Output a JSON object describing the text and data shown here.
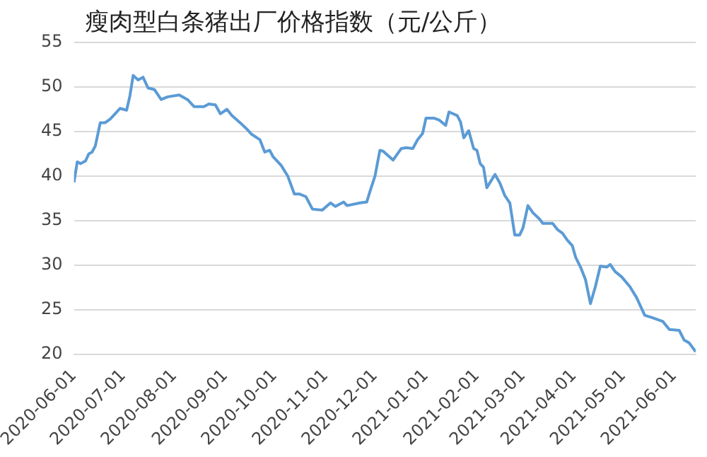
{
  "chart_data": {
    "type": "line",
    "title": "瘦肉型白条猪出厂价格指数（元/公斤）",
    "x": [
      "2020-06-01",
      "2020-06-03",
      "2020-06-05",
      "2020-06-08",
      "2020-06-10",
      "2020-06-12",
      "2020-06-14",
      "2020-06-17",
      "2020-06-20",
      "2020-06-23",
      "2020-06-26",
      "2020-06-29",
      "2020-07-03",
      "2020-07-05",
      "2020-07-07",
      "2020-07-10",
      "2020-07-13",
      "2020-07-16",
      "2020-07-20",
      "2020-07-24",
      "2020-07-28",
      "2020-08-04",
      "2020-08-09",
      "2020-08-13",
      "2020-08-19",
      "2020-08-22",
      "2020-08-26",
      "2020-08-29",
      "2020-09-02",
      "2020-09-05",
      "2020-09-10",
      "2020-09-14",
      "2020-09-17",
      "2020-09-22",
      "2020-09-25",
      "2020-09-28",
      "2020-09-30",
      "2020-10-05",
      "2020-10-09",
      "2020-10-13",
      "2020-10-16",
      "2020-10-20",
      "2020-10-24",
      "2020-10-30",
      "2020-11-04",
      "2020-11-07",
      "2020-11-12",
      "2020-11-14",
      "2020-11-22",
      "2020-11-26",
      "2020-11-28",
      "2020-12-01",
      "2020-12-04",
      "2020-12-06",
      "2020-12-12",
      "2020-12-17",
      "2020-12-20",
      "2020-12-24",
      "2020-12-27",
      "2020-12-30",
      "2021-01-01",
      "2021-01-06",
      "2021-01-09",
      "2021-01-13",
      "2021-01-15",
      "2021-01-20",
      "2021-01-22",
      "2021-01-24",
      "2021-01-27",
      "2021-01-30",
      "2021-02-01",
      "2021-02-03",
      "2021-02-05",
      "2021-02-07",
      "2021-02-12",
      "2021-02-15",
      "2021-02-18",
      "2021-02-21",
      "2021-02-24",
      "2021-02-27",
      "2021-03-01",
      "2021-03-04",
      "2021-03-07",
      "2021-03-11",
      "2021-03-13",
      "2021-03-19",
      "2021-03-22",
      "2021-03-25",
      "2021-03-28",
      "2021-03-31",
      "2021-04-02",
      "2021-04-05",
      "2021-04-08",
      "2021-04-11",
      "2021-04-14",
      "2021-04-17",
      "2021-04-21",
      "2021-04-23",
      "2021-04-26",
      "2021-04-30",
      "2021-05-05",
      "2021-05-09",
      "2021-05-14",
      "2021-05-19",
      "2021-05-25",
      "2021-05-29",
      "2021-06-04",
      "2021-06-07",
      "2021-06-10",
      "2021-06-14"
    ],
    "series": [
      {
        "color": "#5b9bd5",
        "values": [
          39.3,
          41.6,
          41.4,
          41.7,
          42.5,
          42.7,
          43.4,
          46.0,
          46.0,
          46.4,
          47.0,
          47.6,
          47.4,
          49.0,
          51.3,
          50.8,
          51.1,
          49.9,
          49.7,
          48.6,
          48.9,
          49.1,
          48.6,
          47.8,
          47.8,
          48.1,
          48.0,
          47.0,
          47.5,
          46.8,
          46.0,
          45.3,
          44.7,
          44.1,
          42.7,
          42.9,
          42.2,
          41.2,
          40.0,
          38.0,
          38.0,
          37.7,
          36.3,
          36.2,
          37.0,
          36.6,
          37.1,
          36.7,
          37.0,
          37.1,
          38.3,
          40.0,
          42.9,
          42.8,
          41.8,
          43.1,
          43.2,
          43.1,
          44.1,
          44.8,
          46.5,
          46.5,
          46.3,
          45.7,
          47.2,
          46.8,
          46.1,
          44.3,
          45.1,
          43.1,
          42.9,
          41.4,
          41.0,
          38.7,
          40.2,
          39.2,
          37.8,
          37.0,
          33.4,
          33.4,
          34.2,
          36.7,
          35.9,
          35.2,
          34.7,
          34.7,
          34.0,
          33.6,
          32.8,
          32.2,
          30.9,
          29.8,
          28.4,
          25.7,
          27.6,
          29.9,
          29.8,
          30.1,
          29.3,
          28.7,
          27.6,
          26.4,
          24.4,
          24.1,
          23.7,
          22.8,
          22.7,
          21.6,
          21.3,
          20.3
        ]
      }
    ],
    "xlim": [
      "2020-06-01",
      "2021-06-14"
    ],
    "xticks": [
      "2020-06-01",
      "2020-07-01",
      "2020-08-01",
      "2020-09-01",
      "2020-10-01",
      "2020-11-01",
      "2020-12-01",
      "2021-01-01",
      "2021-02-01",
      "2021-03-01",
      "2021-04-01",
      "2021-05-01",
      "2021-06-01"
    ],
    "ylim": [
      20,
      55
    ],
    "yticks": [
      20,
      25,
      30,
      35,
      40,
      45,
      50,
      55
    ],
    "grid": "y",
    "legend": false,
    "marker": "none",
    "line_style": "solid"
  }
}
